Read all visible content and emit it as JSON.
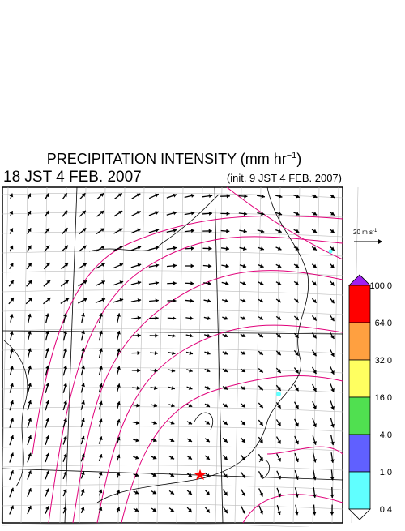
{
  "header": {
    "title": {
      "text": "PRECIPITATION INTENSITY (mm hr",
      "sup": "−1",
      "close": ")"
    },
    "valid_time": "18 JST 4 FEB. 2007",
    "init_time": "(init. 9 JST 4 FEB. 2007)"
  },
  "vector_legend": {
    "text": "20 m s",
    "sup": "-1"
  },
  "colorbar": {
    "labels": [
      "100.0",
      "64.0",
      "32.0",
      "16.0",
      "4.0",
      "1.0",
      "0.4"
    ],
    "colors": [
      "#ff0000",
      "#ffa040",
      "#ffff60",
      "#50e050",
      "#6060ff",
      "#60ffff"
    ],
    "over_color": "#a020f0",
    "under_color": "#ffffff"
  }
}
